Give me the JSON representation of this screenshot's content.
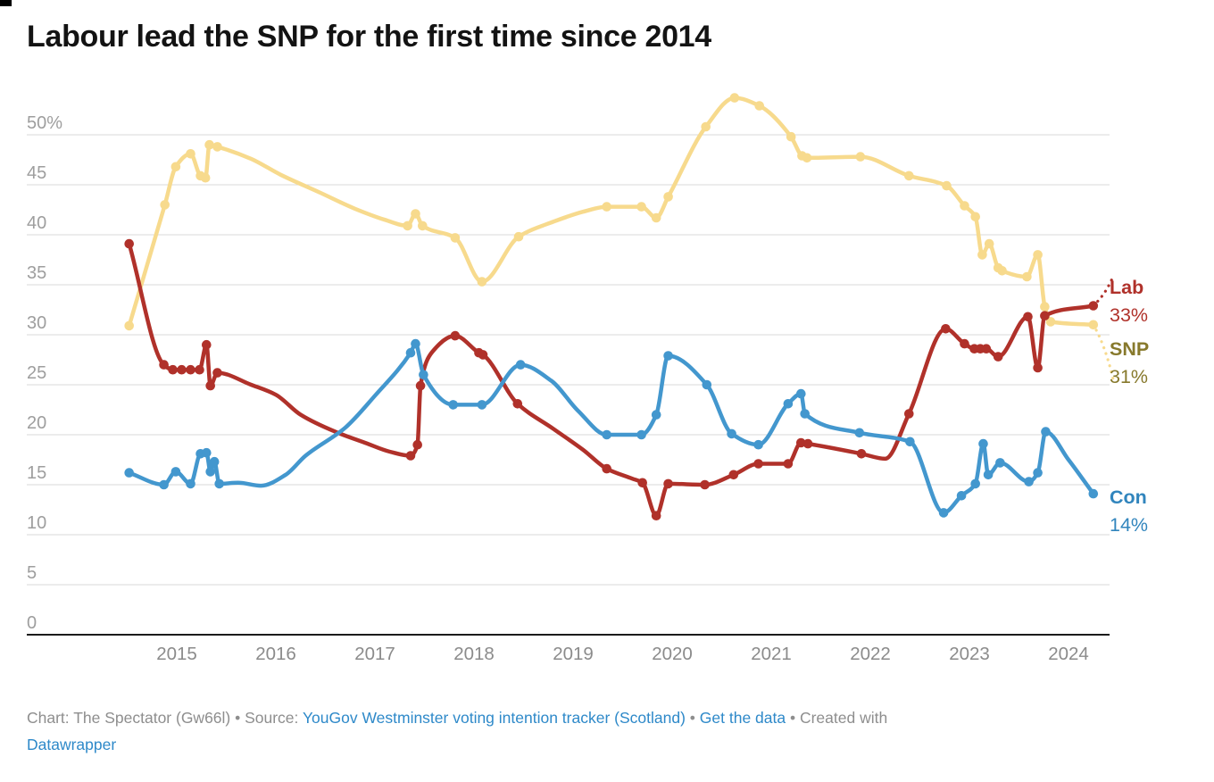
{
  "title": "Labour lead the SNP for the first time since 2014",
  "chart_data": {
    "type": "line",
    "title": "Labour lead the SNP for the first time since 2014",
    "grid": true,
    "legend_position": "right-end-labels",
    "x_axis": {
      "ticks": [
        2015,
        2016,
        2017,
        2018,
        2019,
        2020,
        2021,
        2022,
        2023,
        2024
      ],
      "tick_labels": [
        "2015",
        "2016",
        "2017",
        "2018",
        "2019",
        "2020",
        "2021",
        "2022",
        "2023",
        "2024"
      ],
      "range": [
        2014.35,
        2024.45
      ]
    },
    "y_axis": {
      "unit": "%",
      "ticks": [
        0,
        5,
        10,
        15,
        20,
        25,
        30,
        35,
        40,
        45,
        50
      ],
      "tick_labels": [
        "0",
        "5",
        "10",
        "15",
        "20",
        "25",
        "30",
        "35",
        "40",
        "45",
        "50%"
      ],
      "range": [
        0,
        52
      ]
    },
    "series": [
      {
        "id": "snp",
        "name": "SNP",
        "value_label": "31%",
        "end_value": 31,
        "color": "#f7da8d",
        "label_color": "#87792c",
        "leader": "down",
        "points": [
          [
            2014.52,
            30.9,
            1
          ],
          [
            2014.88,
            43.0,
            1
          ],
          [
            2014.99,
            46.8,
            1
          ],
          [
            2015.14,
            48.1,
            1
          ],
          [
            2015.24,
            45.9,
            1
          ],
          [
            2015.29,
            45.7,
            1
          ],
          [
            2015.33,
            49.0,
            1
          ],
          [
            2015.41,
            48.8,
            1
          ],
          [
            2015.75,
            47.6,
            0
          ],
          [
            2016.05,
            46.0,
            0
          ],
          [
            2016.45,
            44.2,
            0
          ],
          [
            2016.8,
            42.6,
            0
          ],
          [
            2017.1,
            41.5,
            0
          ],
          [
            2017.33,
            40.9,
            1
          ],
          [
            2017.41,
            42.1,
            1
          ],
          [
            2017.48,
            40.9,
            1
          ],
          [
            2017.81,
            39.7,
            1
          ],
          [
            2018.08,
            35.3,
            1
          ],
          [
            2018.45,
            39.8,
            1
          ],
          [
            2018.8,
            41.3,
            0
          ],
          [
            2019.1,
            42.3,
            0
          ],
          [
            2019.34,
            42.8,
            1
          ],
          [
            2019.69,
            42.8,
            1
          ],
          [
            2019.84,
            41.7,
            1
          ],
          [
            2019.96,
            43.8,
            1
          ],
          [
            2020.34,
            50.8,
            1
          ],
          [
            2020.63,
            53.7,
            1
          ],
          [
            2020.88,
            52.9,
            1
          ],
          [
            2021.2,
            49.8,
            1
          ],
          [
            2021.31,
            47.9,
            1
          ],
          [
            2021.36,
            47.7,
            1
          ],
          [
            2021.9,
            47.8,
            1
          ],
          [
            2022.39,
            45.9,
            1
          ],
          [
            2022.77,
            44.9,
            1
          ],
          [
            2022.95,
            42.9,
            1
          ],
          [
            2023.06,
            41.8,
            1
          ],
          [
            2023.13,
            38.0,
            1
          ],
          [
            2023.2,
            39.1,
            1
          ],
          [
            2023.29,
            36.7,
            1
          ],
          [
            2023.33,
            36.4,
            1
          ],
          [
            2023.58,
            35.8,
            1
          ],
          [
            2023.69,
            38.0,
            1
          ],
          [
            2023.76,
            32.8,
            1
          ],
          [
            2023.82,
            31.3,
            1
          ],
          [
            2024.25,
            31.0,
            1
          ]
        ]
      },
      {
        "id": "lab",
        "name": "Lab",
        "value_label": "33%",
        "end_value": 33,
        "color": "#b0312a",
        "label_color": "#b0312a",
        "leader": "up",
        "points": [
          [
            2014.52,
            39.1,
            1
          ],
          [
            2014.87,
            27.0,
            1
          ],
          [
            2014.96,
            26.5,
            1
          ],
          [
            2015.05,
            26.5,
            1
          ],
          [
            2015.14,
            26.5,
            1
          ],
          [
            2015.23,
            26.5,
            1
          ],
          [
            2015.3,
            29.0,
            1
          ],
          [
            2015.34,
            24.9,
            1
          ],
          [
            2015.41,
            26.2,
            1
          ],
          [
            2015.75,
            25.0,
            0
          ],
          [
            2016.0,
            24.0,
            0
          ],
          [
            2016.25,
            22.0,
            0
          ],
          [
            2016.6,
            20.3,
            0
          ],
          [
            2016.9,
            19.2,
            0
          ],
          [
            2017.15,
            18.3,
            0
          ],
          [
            2017.36,
            17.9,
            1
          ],
          [
            2017.43,
            19.0,
            1
          ],
          [
            2017.46,
            24.9,
            1
          ],
          [
            2017.58,
            28.3,
            0
          ],
          [
            2017.81,
            29.9,
            1
          ],
          [
            2018.05,
            28.2,
            1
          ],
          [
            2018.09,
            28.0,
            1
          ],
          [
            2018.44,
            23.1,
            1
          ],
          [
            2018.8,
            20.6,
            0
          ],
          [
            2019.1,
            18.5,
            0
          ],
          [
            2019.34,
            16.6,
            1
          ],
          [
            2019.6,
            15.6,
            0
          ],
          [
            2019.7,
            15.2,
            1
          ],
          [
            2019.84,
            11.9,
            1
          ],
          [
            2019.96,
            15.1,
            1
          ],
          [
            2020.33,
            15.0,
            1
          ],
          [
            2020.62,
            16.0,
            1
          ],
          [
            2020.87,
            17.1,
            1
          ],
          [
            2021.17,
            17.1,
            1
          ],
          [
            2021.3,
            19.2,
            1
          ],
          [
            2021.37,
            19.1,
            1
          ],
          [
            2021.91,
            18.1,
            1
          ],
          [
            2022.15,
            17.6,
            0
          ],
          [
            2022.39,
            22.1,
            1
          ],
          [
            2022.76,
            30.6,
            1
          ],
          [
            2022.95,
            29.1,
            1
          ],
          [
            2023.05,
            28.6,
            1
          ],
          [
            2023.11,
            28.6,
            1
          ],
          [
            2023.17,
            28.6,
            1
          ],
          [
            2023.29,
            27.8,
            1
          ],
          [
            2023.59,
            31.8,
            1
          ],
          [
            2023.69,
            26.7,
            1
          ],
          [
            2023.76,
            31.9,
            1
          ],
          [
            2024.25,
            32.9,
            1
          ]
        ]
      },
      {
        "id": "con",
        "name": "Con",
        "value_label": "14%",
        "end_value": 14,
        "color": "#4397ce",
        "label_color": "#3185bd",
        "leader": "none",
        "points": [
          [
            2014.52,
            16.2,
            1
          ],
          [
            2014.87,
            15.0,
            1
          ],
          [
            2014.99,
            16.3,
            1
          ],
          [
            2015.14,
            15.1,
            1
          ],
          [
            2015.24,
            18.1,
            1
          ],
          [
            2015.3,
            18.2,
            1
          ],
          [
            2015.34,
            16.3,
            1
          ],
          [
            2015.38,
            17.3,
            1
          ],
          [
            2015.43,
            15.1,
            1
          ],
          [
            2015.62,
            15.2,
            0
          ],
          [
            2015.85,
            14.9,
            0
          ],
          [
            2016.1,
            16.0,
            0
          ],
          [
            2016.3,
            17.9,
            0
          ],
          [
            2016.7,
            20.7,
            0
          ],
          [
            2017.0,
            23.9,
            0
          ],
          [
            2017.36,
            28.2,
            1
          ],
          [
            2017.41,
            29.1,
            1
          ],
          [
            2017.49,
            26.0,
            1
          ],
          [
            2017.79,
            23.0,
            1
          ],
          [
            2018.08,
            23.0,
            1
          ],
          [
            2018.47,
            27.0,
            1
          ],
          [
            2018.78,
            25.4,
            0
          ],
          [
            2019.05,
            22.4,
            0
          ],
          [
            2019.34,
            20.0,
            1
          ],
          [
            2019.69,
            20.0,
            1
          ],
          [
            2019.84,
            22.0,
            1
          ],
          [
            2019.96,
            27.9,
            1
          ],
          [
            2020.35,
            25.0,
            1
          ],
          [
            2020.6,
            20.1,
            1
          ],
          [
            2020.87,
            19.0,
            1
          ],
          [
            2021.17,
            23.1,
            1
          ],
          [
            2021.3,
            24.1,
            1
          ],
          [
            2021.34,
            22.1,
            1
          ],
          [
            2021.89,
            20.2,
            1
          ],
          [
            2022.4,
            19.3,
            1
          ],
          [
            2022.74,
            12.2,
            1
          ],
          [
            2022.92,
            13.9,
            1
          ],
          [
            2023.06,
            15.1,
            1
          ],
          [
            2023.14,
            19.1,
            1
          ],
          [
            2023.19,
            16.0,
            1
          ],
          [
            2023.31,
            17.2,
            1
          ],
          [
            2023.6,
            15.3,
            1
          ],
          [
            2023.69,
            16.2,
            1
          ],
          [
            2023.77,
            20.3,
            1
          ],
          [
            2024.0,
            17.5,
            0
          ],
          [
            2024.25,
            14.1,
            1
          ]
        ]
      }
    ],
    "colors": {
      "grid": "#d9d9d9",
      "zero_line": "#1b1b1b",
      "y_tick_text": "#9e9e9e",
      "x_tick_text": "#8b8b8b",
      "title_text": "#131313"
    }
  },
  "footer": {
    "parts": [
      {
        "text": "Chart: The Spectator (Gw66l) • Source: "
      },
      {
        "text": "YouGov Westminster voting intention tracker (Scotland)"
      },
      {
        "text": " • "
      },
      {
        "text": "Get the data"
      },
      {
        "text": " • Created with "
      },
      {
        "text": "Datawrapper"
      }
    ]
  }
}
